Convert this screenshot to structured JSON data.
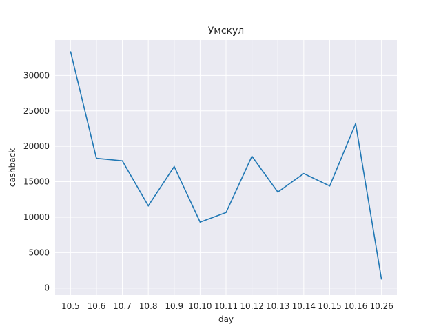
{
  "chart_data": {
    "type": "line",
    "title": "Умскул",
    "xlabel": "day",
    "ylabel": "cashback",
    "categories": [
      "10.5",
      "10.6",
      "10.7",
      "10.8",
      "10.9",
      "10.10",
      "10.11",
      "10.12",
      "10.13",
      "10.14",
      "10.15",
      "10.16",
      "10.26"
    ],
    "series": [
      {
        "values": [
          33400,
          18300,
          17950,
          11600,
          17150,
          9300,
          10650,
          18600,
          13550,
          16150,
          14400,
          23200,
          1200
        ]
      }
    ],
    "yticks": [
      0,
      5000,
      10000,
      15000,
      20000,
      25000,
      30000
    ],
    "ylim": [
      -1000,
      35000
    ],
    "grid": true,
    "colors": {
      "background": "#eaeaf2",
      "grid": "#ffffff",
      "line": "#1f77b4"
    }
  }
}
